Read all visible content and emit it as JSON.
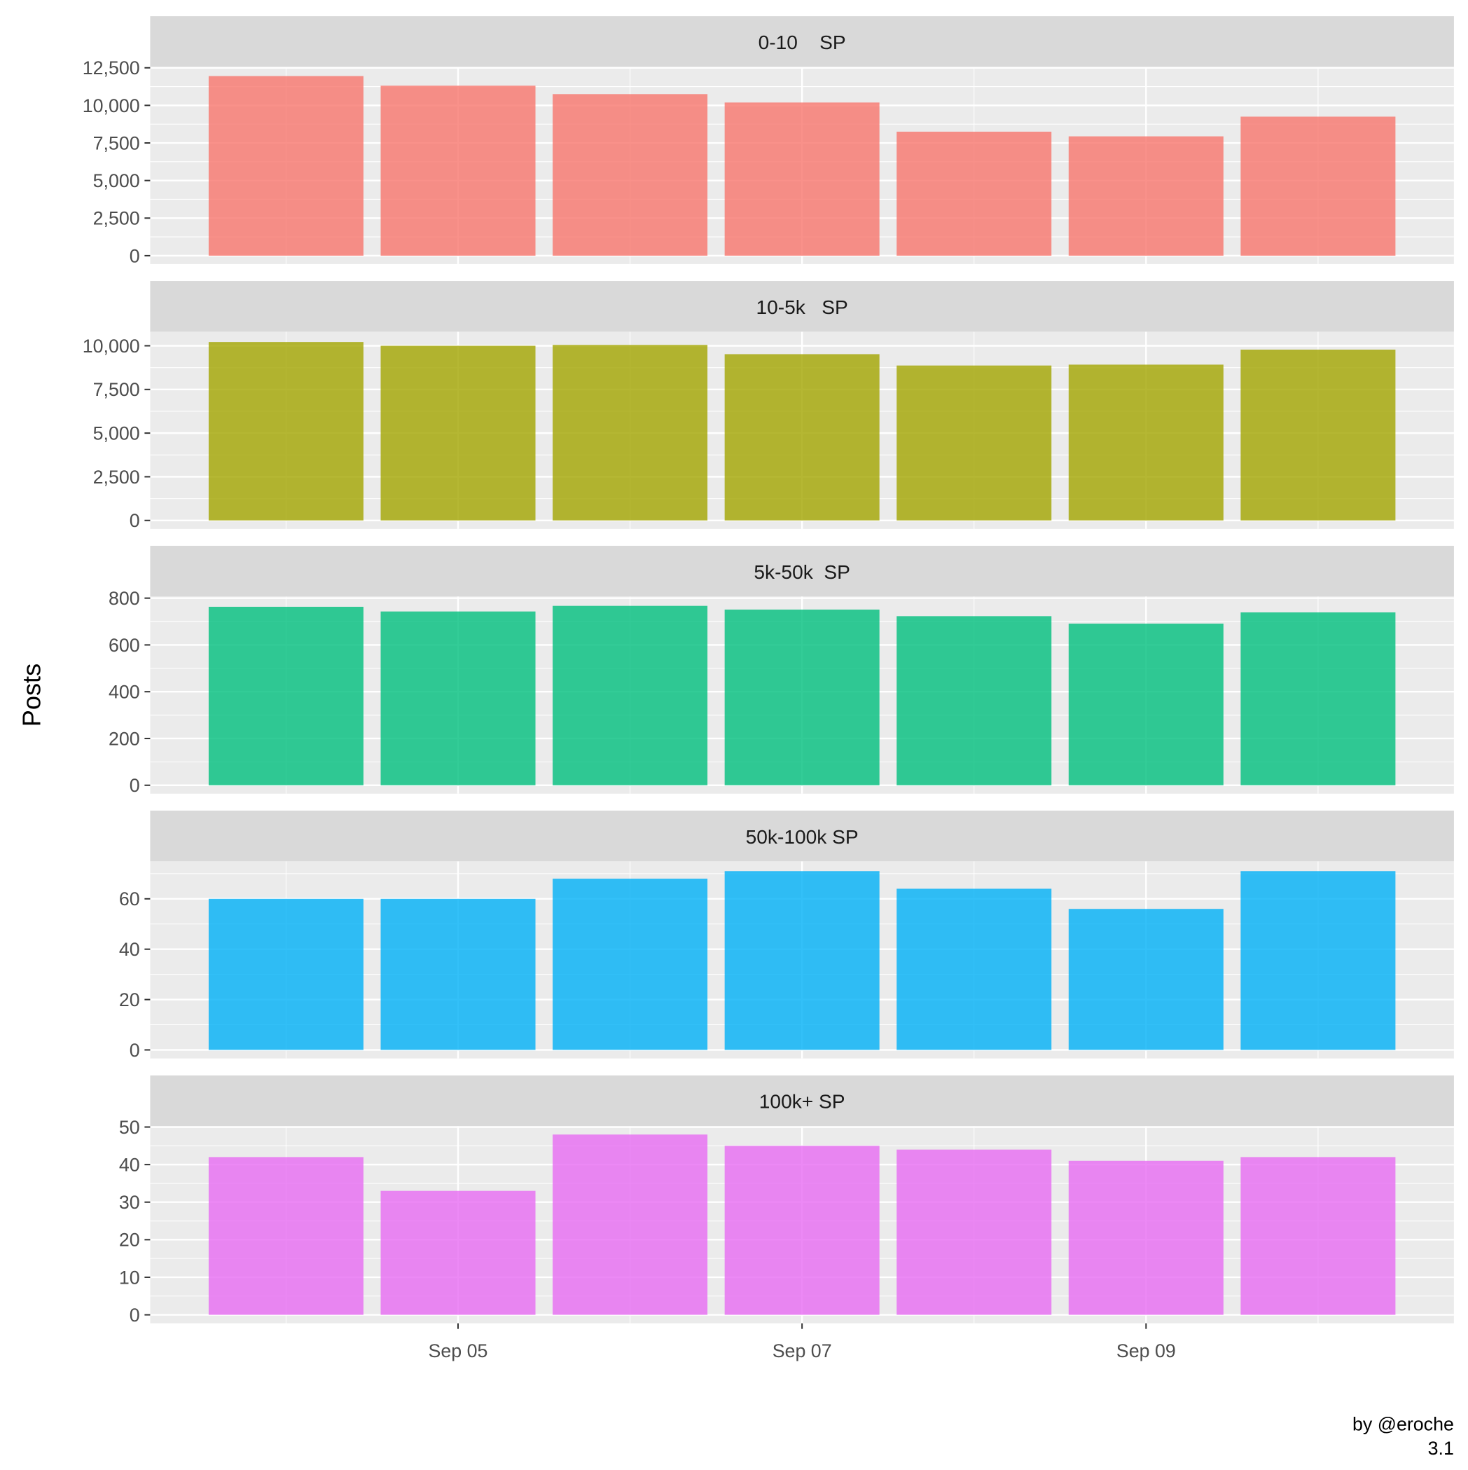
{
  "chart_data": {
    "type": "bar",
    "layout": "faceted-vertical",
    "ylabel": "Posts",
    "xlabel": "",
    "caption": [
      "by @eroche",
      "3.1"
    ],
    "x": [
      "Sep 04",
      "Sep 05",
      "Sep 06",
      "Sep 07",
      "Sep 08",
      "Sep 09",
      "Sep 10"
    ],
    "x_tick_labels": [
      "Sep 05",
      "Sep 07",
      "Sep 09"
    ],
    "grid": true,
    "facets": [
      {
        "title": "0-10    SP",
        "color": "#F8766D",
        "ylim": [
          -560,
          12560
        ],
        "yticks": [
          0,
          2500,
          5000,
          7500,
          10000,
          12500
        ],
        "ytick_labels": [
          "0",
          "2,500",
          "5,000",
          "7,500",
          "10,000",
          "12,500"
        ],
        "values": [
          11950,
          11310,
          10750,
          10190,
          8250,
          7940,
          9250
        ]
      },
      {
        "title": "10-5k   SP",
        "color": "#A3A500",
        "ylim": [
          -484,
          10806
        ],
        "yticks": [
          0,
          2500,
          5000,
          7500,
          10000
        ],
        "ytick_labels": [
          "0",
          "2,500",
          "5,000",
          "7,500",
          "10,000"
        ],
        "values": [
          10215,
          10000,
          10050,
          9520,
          8870,
          8920,
          9780
        ]
      },
      {
        "title": "5k-50k  SP",
        "color": "#00BF7D",
        "ylim": [
          -36,
          807
        ],
        "yticks": [
          0,
          200,
          400,
          600,
          800
        ],
        "ytick_labels": [
          "0",
          "200",
          "400",
          "600",
          "800"
        ],
        "values": [
          763,
          743,
          767,
          751,
          723,
          691,
          739
        ]
      },
      {
        "title": "50k-100k SP",
        "color": "#00B0F6",
        "ylim": [
          -3.4,
          74.9
        ],
        "yticks": [
          0,
          20,
          40,
          60
        ],
        "ytick_labels": [
          "0",
          "20",
          "40",
          "60"
        ],
        "values": [
          60,
          60,
          68,
          71,
          64,
          56,
          71
        ]
      },
      {
        "title": "100k+ SP",
        "color": "#E76BF3",
        "ylim": [
          -2.25,
          50.25
        ],
        "yticks": [
          0,
          10,
          20,
          30,
          40,
          50
        ],
        "ytick_labels": [
          "0",
          "10",
          "20",
          "30",
          "40",
          "50"
        ],
        "values": [
          42,
          33,
          48,
          45,
          44,
          41,
          42
        ]
      }
    ]
  }
}
